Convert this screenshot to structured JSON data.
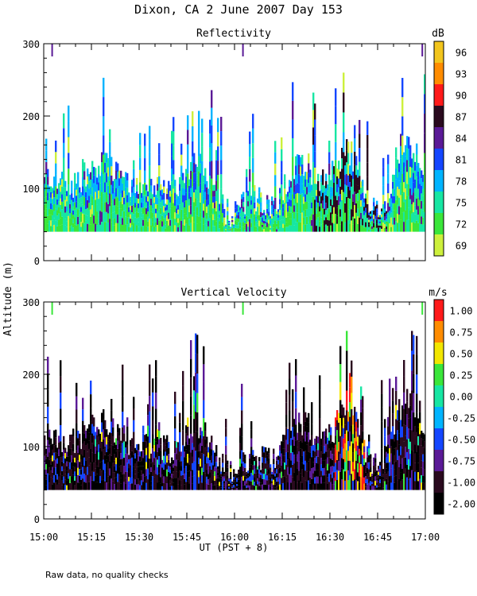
{
  "title": "Dixon, CA  2 June 2007  Day 153",
  "ylabel": "Altitude (m)",
  "xlabel": "UT  (PST + 8)",
  "footnote": "Raw data, no quality checks",
  "x_ticks": [
    "15:00",
    "15:15",
    "15:30",
    "15:45",
    "16:00",
    "16:15",
    "16:30",
    "16:45",
    "17:00"
  ],
  "y_ticks": [
    "0",
    "100",
    "200",
    "300"
  ],
  "chart_data": [
    {
      "type": "heatmap",
      "title": "Reflectivity",
      "colorbar_unit": "dB",
      "colorbar_labels": [
        "96",
        "93",
        "90",
        "87",
        "84",
        "81",
        "78",
        "75",
        "72",
        "69"
      ],
      "colorbar_colors": [
        "#f2c51d",
        "#ff8c00",
        "#ff1a1a",
        "#2a0a1e",
        "#5a1a96",
        "#1446ff",
        "#00b4ff",
        "#17e6a3",
        "#3ae63a",
        "#cdf03c"
      ],
      "x_range": [
        "15:00",
        "17:00"
      ],
      "ylim": [
        0,
        300
      ],
      "grid": false
    },
    {
      "type": "heatmap",
      "title": "Vertical Velocity",
      "colorbar_unit": "m/s",
      "colorbar_labels": [
        "1.00",
        "0.75",
        "0.50",
        "0.25",
        "0.00",
        "-0.25",
        "-0.50",
        "-0.75",
        "-1.00",
        "-2.00"
      ],
      "colorbar_colors": [
        "#ff1a1a",
        "#ff8c00",
        "#f2e600",
        "#3ae63a",
        "#17e6a3",
        "#00b4ff",
        "#1446ff",
        "#5a1a96",
        "#2a0a1e",
        "#000000"
      ],
      "x_range": [
        "15:00",
        "17:00"
      ],
      "ylim": [
        0,
        300
      ],
      "grid": false
    }
  ]
}
